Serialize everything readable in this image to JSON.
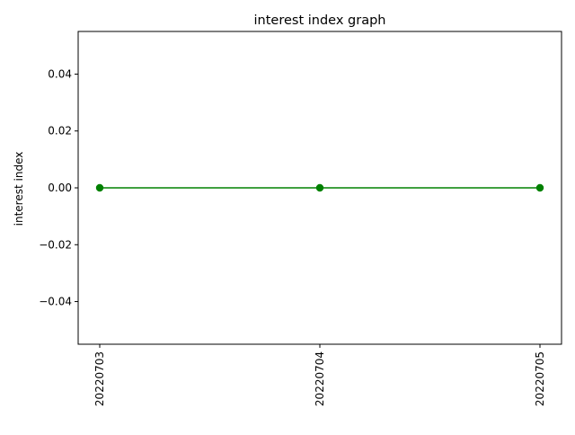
{
  "chart_data": {
    "type": "line",
    "title": "interest index graph",
    "xlabel": "",
    "ylabel": "interest index",
    "categories": [
      "20220703",
      "20220704",
      "20220705"
    ],
    "series": [
      {
        "values": [
          0.0,
          0.0,
          0.0
        ],
        "color": "#008000",
        "marker": "circle"
      }
    ],
    "ylim": [
      -0.055,
      0.055
    ],
    "yticks": [
      -0.04,
      -0.02,
      0.0,
      0.02,
      0.04
    ],
    "ytick_labels": [
      "−0.04",
      "−0.02",
      "0.00",
      "0.02",
      "0.04"
    ],
    "grid": false,
    "legend": "none"
  }
}
